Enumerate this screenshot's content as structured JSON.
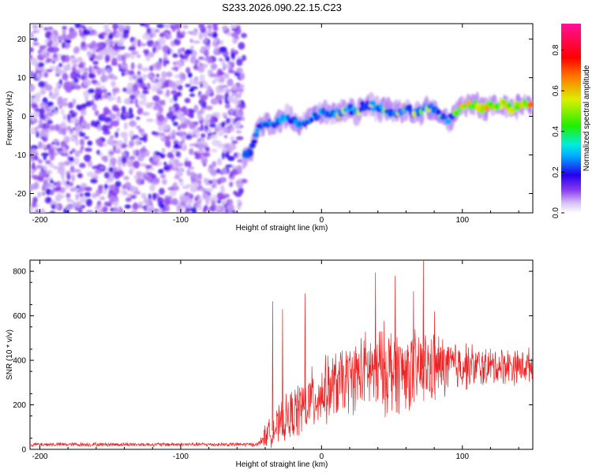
{
  "title": "S233.2026.090.22.15.C23",
  "chart_data": [
    {
      "type": "heatmap",
      "name": "spectrogram",
      "xlabel": "Height of straight line (km)",
      "ylabel": "Frequency (Hz)",
      "xlim": [
        -207,
        150
      ],
      "ylim": [
        -25,
        24
      ],
      "xticks": [
        -200,
        -100,
        0,
        100
      ],
      "yticks": [
        -20,
        -10,
        0,
        10,
        20
      ],
      "noise_region": [
        -207,
        -55
      ],
      "signal_track": {
        "x": [
          -55,
          -50,
          -45,
          -40,
          -35,
          -30,
          -25,
          -20,
          -15,
          -10,
          -5,
          0,
          5,
          10,
          15,
          20,
          25,
          30,
          35,
          40,
          45,
          50,
          55,
          60,
          65,
          70,
          75,
          80,
          85,
          90,
          95,
          100,
          105,
          110,
          115,
          120,
          125,
          130,
          135,
          140,
          145,
          150
        ],
        "y": [
          -10,
          -9,
          -3,
          -2,
          -2,
          -1,
          0,
          -1,
          -2,
          -1,
          0,
          1,
          1,
          1,
          1,
          2,
          1,
          3,
          3,
          2,
          2,
          1,
          1,
          2,
          1,
          1,
          2,
          2,
          0,
          -1,
          1,
          3,
          3,
          3,
          2,
          3,
          3,
          3,
          2,
          3,
          3,
          3
        ]
      },
      "colorbar": {
        "label": "Normalized spectral amplitude",
        "range": [
          0.0,
          0.93
        ],
        "ticks": [
          0.0,
          0.2,
          0.4,
          0.6,
          0.8
        ],
        "tick_labels": [
          "0.0",
          "0.2",
          "0.4",
          "0.6",
          "0.8"
        ]
      }
    },
    {
      "type": "line",
      "name": "snr",
      "xlabel": "Height of straight line (km)",
      "ylabel": "SNR (10 * v/v)",
      "xlim": [
        -207,
        150
      ],
      "ylim": [
        0,
        850
      ],
      "xticks": [
        -200,
        -100,
        0,
        100
      ],
      "yticks": [
        0,
        200,
        400,
        600,
        800
      ],
      "color": "#ee2222",
      "envelope": {
        "x": [
          -207,
          -100,
          -60,
          -45,
          -40,
          -30,
          -20,
          -10,
          0,
          10,
          20,
          30,
          40,
          50,
          60,
          70,
          80,
          90,
          100,
          110,
          120,
          130,
          140,
          150
        ],
        "mean": [
          22,
          22,
          22,
          22,
          60,
          110,
          160,
          210,
          250,
          290,
          320,
          350,
          360,
          360,
          350,
          360,
          370,
          370,
          380,
          370,
          370,
          380,
          370,
          380
        ],
        "spread": [
          10,
          10,
          10,
          10,
          60,
          100,
          140,
          160,
          170,
          180,
          180,
          200,
          230,
          240,
          200,
          200,
          180,
          150,
          130,
          110,
          100,
          100,
          90,
          90
        ]
      },
      "peaks": [
        {
          "x": -35,
          "y": 665
        },
        {
          "x": -28,
          "y": 630
        },
        {
          "x": -12,
          "y": 700
        },
        {
          "x": 38,
          "y": 795
        },
        {
          "x": 52,
          "y": 780
        },
        {
          "x": 65,
          "y": 710
        },
        {
          "x": 72,
          "y": 850
        },
        {
          "x": 80,
          "y": 620
        }
      ]
    }
  ]
}
